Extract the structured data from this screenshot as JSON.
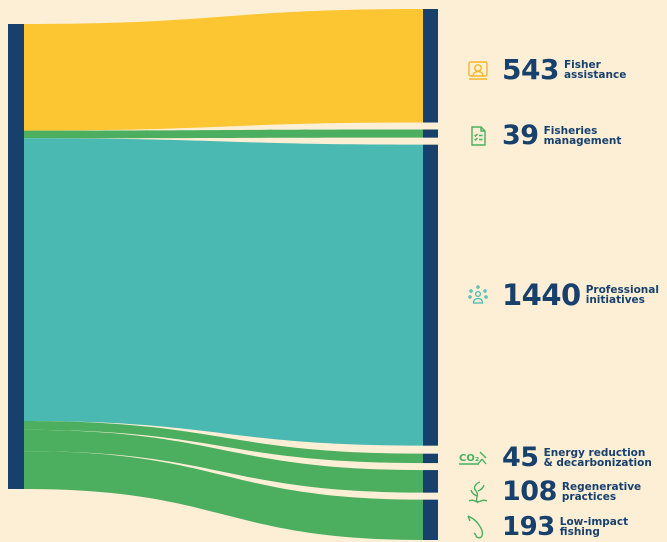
{
  "chart_data": {
    "type": "sankey",
    "colors": {
      "background": "#fdefd6",
      "node": "#17406d",
      "text": "#17406d"
    },
    "links": [
      {
        "value": 543,
        "color": "#fcc633"
      },
      {
        "value": 39,
        "color": "#4cae5f"
      },
      {
        "value": 1440,
        "color": "#4ab9b2"
      },
      {
        "value": 45,
        "color": "#4cae5f"
      },
      {
        "value": 108,
        "color": "#4cae5f"
      },
      {
        "value": 193,
        "color": "#4cae5f"
      }
    ],
    "entries": [
      {
        "value": "543",
        "label": "Fisher\nassistance",
        "icon": "fisher-assistance-icon",
        "icon_color": "#f5b62a"
      },
      {
        "value": "39",
        "label": "Fisheries\nmanagement",
        "icon": "document-checklist-icon",
        "icon_color": "#4cae5f"
      },
      {
        "value": "1440",
        "label": "Professional\ninitiatives",
        "icon": "people-network-icon",
        "icon_color": "#4ab9b2"
      },
      {
        "value": "45",
        "label": "Energy reduction\n& decarbonization",
        "icon": "co2-reduction-icon",
        "icon_color": "#4cae5f"
      },
      {
        "value": "108",
        "label": "Regenerative\npractices",
        "icon": "seaweed-icon",
        "icon_color": "#4cae5f"
      },
      {
        "value": "193",
        "label": "Low-impact\nfishing",
        "icon": "fish-hook-icon",
        "icon_color": "#4cae5f"
      }
    ]
  }
}
